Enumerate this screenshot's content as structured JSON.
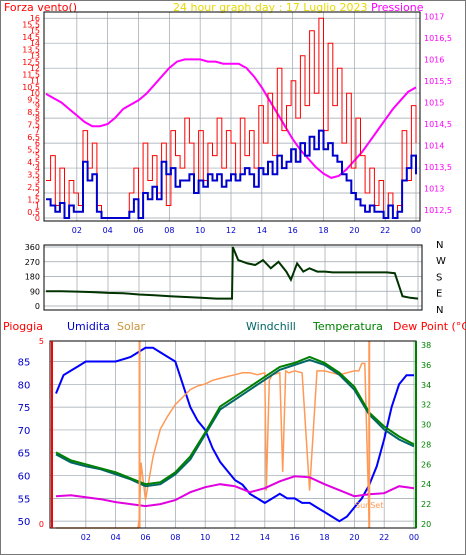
{
  "colors": {
    "wind": "#ff0000",
    "gust": "#0000cc",
    "pressure": "#ff00ff",
    "direction": "#003300",
    "rain": "#ff0000",
    "humidity": "#0000ff",
    "solar": "#ff9955",
    "windchill": "#006666",
    "temperature": "#008000",
    "dewpoint": "#e000e0",
    "sunset": "#ff9955",
    "grid": "#9aa4ad",
    "border": "#000000",
    "axis_right_3": "#008000"
  },
  "header": {
    "left": "Forza vento()",
    "center": "24 hour graph day : 17 Luglio 2023",
    "right": "Pressione"
  },
  "chart_data": [
    {
      "type": "line",
      "left_ticks": [
        "0",
        "0,5",
        "1",
        "1,5",
        "2",
        "2,5",
        "3",
        "3,5",
        "4",
        "4,5",
        "5",
        "5,5",
        "6",
        "6,5",
        "7",
        "7,5",
        "8",
        "8,5",
        "9",
        "9,5",
        "10",
        "10,5",
        "11",
        "11,5",
        "12",
        "12,5",
        "13",
        "13,5",
        "14",
        "14,5",
        "15",
        "15,5",
        "16"
      ],
      "right_ticks": [
        "1012,5",
        "1013",
        "1013,5",
        "1014",
        "1014,5",
        "1015",
        "1015,5",
        "1016",
        "1016,5",
        "1017"
      ],
      "x_ticks": [
        "02",
        "04",
        "06",
        "08",
        "10",
        "12",
        "14",
        "16",
        "18",
        "20",
        "22",
        "00"
      ],
      "ylim_left": [
        0,
        16.5
      ],
      "ylim_right": [
        1012.25,
        1017.1
      ],
      "series": [
        {
          "key": "pressure",
          "x": [
            0,
            0.5,
            1,
            1.5,
            2,
            2.5,
            3,
            3.5,
            4,
            4.5,
            5,
            5.5,
            6,
            6.5,
            7,
            7.5,
            8,
            8.5,
            9,
            9.5,
            10,
            10.5,
            11,
            11.5,
            12,
            12.5,
            13,
            13.5,
            14,
            14.5,
            15,
            15.5,
            16,
            16.5,
            17,
            17.5,
            18,
            18.5,
            19,
            19.5,
            20,
            20.5,
            21,
            21.5,
            22,
            22.5,
            23,
            23.5,
            24
          ],
          "values": [
            1015.2,
            1015.1,
            1015.0,
            1014.85,
            1014.7,
            1014.55,
            1014.45,
            1014.45,
            1014.5,
            1014.65,
            1014.85,
            1014.95,
            1015.05,
            1015.2,
            1015.4,
            1015.6,
            1015.8,
            1015.95,
            1016.0,
            1016.0,
            1016.0,
            1015.95,
            1015.95,
            1015.9,
            1015.9,
            1015.9,
            1015.8,
            1015.6,
            1015.35,
            1015.05,
            1014.75,
            1014.45,
            1014.15,
            1013.9,
            1013.7,
            1013.5,
            1013.35,
            1013.25,
            1013.3,
            1013.45,
            1013.65,
            1013.85,
            1014.1,
            1014.35,
            1014.6,
            1014.85,
            1015.05,
            1015.25,
            1015.35
          ]
        },
        {
          "key": "wind",
          "x": [
            0,
            0.3,
            0.6,
            0.9,
            1.2,
            1.5,
            1.8,
            2.1,
            2.4,
            2.7,
            3.0,
            3.3,
            3.6,
            3.9,
            4.2,
            4.5,
            4.8,
            5.1,
            5.4,
            5.7,
            6.0,
            6.3,
            6.6,
            6.9,
            7.2,
            7.5,
            7.8,
            8.1,
            8.4,
            8.7,
            9.0,
            9.3,
            9.6,
            9.9,
            10.2,
            10.5,
            10.8,
            11.1,
            11.4,
            11.7,
            12.0,
            12.3,
            12.6,
            12.9,
            13.2,
            13.5,
            13.8,
            14.1,
            14.4,
            14.7,
            15.0,
            15.3,
            15.6,
            15.9,
            16.2,
            16.5,
            16.8,
            17.1,
            17.4,
            17.7,
            18.0,
            18.3,
            18.6,
            18.9,
            19.2,
            19.5,
            19.8,
            20.1,
            20.4,
            20.7,
            21.0,
            21.3,
            21.6,
            21.9,
            22.2,
            22.5,
            22.8,
            23.1,
            23.4,
            23.7,
            24.0
          ],
          "values": [
            3,
            5,
            1,
            4,
            0,
            3,
            2,
            1,
            7,
            4,
            6,
            1,
            0,
            0,
            0,
            0,
            0,
            0,
            2,
            4,
            0,
            6,
            3,
            5,
            2,
            6,
            1,
            7,
            5,
            4,
            8,
            6,
            2,
            7,
            3,
            6,
            5,
            8,
            4,
            7,
            6,
            3,
            8,
            5,
            7,
            4,
            9,
            6,
            10,
            5,
            12,
            7,
            9,
            11,
            8,
            13,
            9,
            15,
            10,
            16,
            7,
            14,
            9,
            12,
            6,
            10,
            4,
            8,
            5,
            2,
            4,
            1,
            3,
            0,
            2,
            0,
            1,
            7,
            3,
            9,
            6
          ]
        },
        {
          "key": "gust",
          "x": [
            0,
            0.3,
            0.6,
            0.9,
            1.2,
            1.5,
            1.8,
            2.1,
            2.4,
            2.7,
            3.0,
            3.3,
            3.6,
            3.9,
            4.2,
            4.5,
            4.8,
            5.1,
            5.4,
            5.7,
            6.0,
            6.3,
            6.6,
            6.9,
            7.2,
            7.5,
            7.8,
            8.1,
            8.4,
            8.7,
            9.0,
            9.3,
            9.6,
            9.9,
            10.2,
            10.5,
            10.8,
            11.1,
            11.4,
            11.7,
            12.0,
            12.3,
            12.6,
            12.9,
            13.2,
            13.5,
            13.8,
            14.1,
            14.4,
            14.7,
            15.0,
            15.3,
            15.6,
            15.9,
            16.2,
            16.5,
            16.8,
            17.1,
            17.4,
            17.7,
            18.0,
            18.3,
            18.6,
            18.9,
            19.2,
            19.5,
            19.8,
            20.1,
            20.4,
            20.7,
            21.0,
            21.3,
            21.6,
            21.9,
            22.2,
            22.5,
            22.8,
            23.1,
            23.4,
            23.7,
            24.0
          ],
          "values": [
            1.5,
            1,
            0.5,
            1.2,
            0,
            1,
            0.5,
            0.5,
            4.5,
            3,
            3.5,
            0.5,
            0,
            0,
            0,
            0,
            0,
            0,
            0.5,
            1.5,
            0,
            2,
            1.5,
            2.5,
            1.5,
            4.5,
            3.5,
            4,
            2.5,
            3,
            3,
            3.5,
            2,
            3,
            2.5,
            3.5,
            3,
            3.5,
            2.5,
            3,
            3.5,
            3,
            3.5,
            4,
            3.5,
            2.5,
            4,
            3.5,
            4.5,
            3.5,
            5,
            4,
            4.5,
            5.5,
            4.5,
            6,
            5,
            6.5,
            5.5,
            7,
            5.5,
            6,
            5,
            4.5,
            3.5,
            3,
            2,
            1.5,
            1,
            0.5,
            1,
            0.5,
            0.5,
            0,
            1,
            0,
            0.5,
            3,
            4,
            5,
            3.5
          ]
        }
      ]
    },
    {
      "type": "line",
      "y_ticks": [
        "360",
        "270",
        "180",
        "90",
        "0"
      ],
      "direction_labels": [
        "N",
        "W",
        "S",
        "E",
        "N"
      ],
      "ylim": [
        0,
        360
      ],
      "series": [
        {
          "key": "direction",
          "x": [
            0,
            1,
            2,
            3,
            4,
            5,
            6,
            7,
            8,
            9,
            10,
            11,
            12,
            12.05,
            12.4,
            13,
            13.5,
            14,
            14.5,
            15,
            15.5,
            15.8,
            16.2,
            16.6,
            17,
            17.5,
            18,
            18.5,
            19,
            20,
            21,
            22,
            22.5,
            23,
            23.5,
            24
          ],
          "values": [
            90,
            90,
            88,
            85,
            80,
            78,
            70,
            65,
            60,
            55,
            50,
            45,
            45,
            360,
            280,
            260,
            250,
            280,
            230,
            270,
            210,
            160,
            260,
            210,
            230,
            210,
            210,
            205,
            205,
            205,
            205,
            205,
            200,
            60,
            50,
            45
          ]
        }
      ]
    },
    {
      "type": "line",
      "left_label": "Pioggia",
      "legend": [
        "Umidita",
        "Solar",
        "Windchill",
        "Temperatura",
        "Dew Point (°C)"
      ],
      "humidity_ticks": [
        "50",
        "55",
        "60",
        "65",
        "70",
        "75",
        "80",
        "85"
      ],
      "temp_ticks": [
        "20",
        "22",
        "24",
        "26",
        "28",
        "30",
        "32",
        "34",
        "36",
        "38"
      ],
      "rain_ticks": [
        "0",
        "5"
      ],
      "x_ticks": [
        "02",
        "04",
        "06",
        "08",
        "10",
        "12",
        "14",
        "16",
        "18",
        "20",
        "22",
        "00"
      ],
      "annotation": "SunSet",
      "ylim_humidity": [
        48.5,
        89.5
      ],
      "ylim_temp": [
        19.6,
        38.4
      ],
      "series": [
        {
          "key": "humidity",
          "x": [
            0,
            0.5,
            1,
            1.5,
            2,
            3,
            4,
            5,
            5.5,
            6,
            6.5,
            7,
            7.5,
            8,
            8.5,
            9,
            9.5,
            10,
            10.5,
            11,
            11.5,
            12,
            12.5,
            13,
            13.5,
            14,
            14.5,
            15,
            15.5,
            16,
            16.5,
            17,
            17.5,
            18,
            18.5,
            19,
            19.5,
            20,
            20.5,
            21,
            21.5,
            22,
            22.5,
            23,
            23.5,
            24
          ],
          "values": [
            78,
            82,
            83,
            84,
            85,
            85,
            85,
            86,
            87,
            88,
            88,
            87,
            86,
            85,
            80,
            75,
            72,
            70,
            66,
            63,
            61,
            59,
            58,
            56,
            55,
            54,
            55,
            56,
            55,
            55,
            54,
            54,
            53,
            52,
            51,
            50,
            51,
            53,
            55,
            58,
            62,
            68,
            75,
            80,
            82,
            82
          ]
        },
        {
          "key": "solar",
          "x": [
            0,
            5.5,
            5.6,
            5.7,
            6.0,
            6.5,
            7,
            7.5,
            8,
            8.5,
            9,
            9.5,
            10,
            10.5,
            11,
            11.5,
            12,
            12.5,
            13,
            13.5,
            14,
            14.1,
            14.3,
            14.5,
            15,
            15.2,
            15.4,
            15.6,
            16,
            16.5,
            17,
            17.5,
            18,
            18.5,
            19,
            19.5,
            20,
            20.3,
            20.5,
            20.7,
            21
          ],
          "values": [
            0,
            0,
            60,
            350,
            150,
            380,
            530,
            600,
            660,
            700,
            740,
            760,
            770,
            790,
            800,
            810,
            820,
            830,
            830,
            820,
            830,
            200,
            790,
            820,
            830,
            300,
            840,
            830,
            840,
            830,
            200,
            840,
            840,
            830,
            820,
            830,
            840,
            840,
            880,
            880,
            0
          ]
        },
        {
          "key": "windchill",
          "x": [
            0,
            1,
            2,
            3,
            4,
            5,
            6,
            7,
            8,
            9,
            10,
            11,
            12,
            13,
            14,
            15,
            16,
            17,
            18,
            19,
            20,
            21,
            22,
            23,
            24
          ],
          "values": [
            27,
            26.2,
            25.8,
            25.5,
            25,
            24.5,
            23.8,
            24,
            25,
            26.5,
            29,
            31.5,
            32.5,
            33.5,
            34.5,
            35.5,
            36,
            36.5,
            36,
            35,
            33.5,
            31,
            29.5,
            28.5,
            27.8
          ]
        },
        {
          "key": "temperature",
          "x": [
            0,
            1,
            2,
            3,
            4,
            5,
            6,
            7,
            8,
            9,
            10,
            11,
            12,
            13,
            14,
            15,
            16,
            17,
            18,
            19,
            20,
            21,
            22,
            23,
            24
          ],
          "values": [
            27.2,
            26.4,
            26,
            25.6,
            25.2,
            24.6,
            24,
            24.2,
            25.2,
            26.8,
            29.2,
            31.8,
            32.8,
            33.8,
            34.8,
            35.8,
            36.2,
            36.8,
            36.2,
            35.2,
            33.8,
            31.2,
            29.8,
            28.8,
            28
          ]
        },
        {
          "key": "dewpoint",
          "x": [
            0,
            1,
            2,
            3,
            4,
            5,
            6,
            7,
            8,
            9,
            10,
            11,
            12,
            13,
            14,
            15,
            16,
            17,
            18,
            19,
            20,
            21,
            22,
            23,
            24
          ],
          "values": [
            22.8,
            22.9,
            22.7,
            22.5,
            22.2,
            22.0,
            21.8,
            22.0,
            22.4,
            23.2,
            23.7,
            24.0,
            23.8,
            23.2,
            23.6,
            24.3,
            24.8,
            24.7,
            24.0,
            23.4,
            22.8,
            23.0,
            23.1,
            23.8,
            23.6
          ]
        }
      ]
    }
  ]
}
